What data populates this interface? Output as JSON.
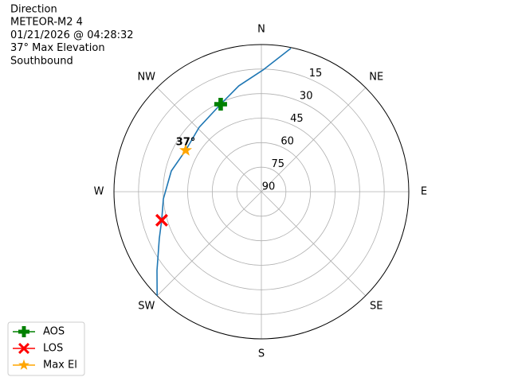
{
  "chart_data": {
    "type": "polar",
    "title_lines": [
      "Direction",
      "METEOR-M2 4",
      "01/21/2026 @ 04:28:32",
      "37° Max Elevation",
      "Southbound"
    ],
    "rlim": [
      90,
      0
    ],
    "rticks": [
      15,
      30,
      45,
      60,
      75,
      90
    ],
    "theta_ticks": [
      {
        "value": 0,
        "label": "N"
      },
      {
        "value": 45,
        "label": "NE"
      },
      {
        "value": 90,
        "label": "E"
      },
      {
        "value": 135,
        "label": "SE"
      },
      {
        "value": 180,
        "label": "S"
      },
      {
        "value": 225,
        "label": "SW"
      },
      {
        "value": 270,
        "label": "W"
      },
      {
        "value": 315,
        "label": "NW"
      }
    ],
    "grid": true,
    "legend": "lower left",
    "track": {
      "color": "#1f77b4",
      "azimuth": [
        11.6,
        0.7,
        348,
        335.1,
        316,
        298.7,
        283,
        265.8,
        254,
        245.3,
        232.9,
        225
      ],
      "elevation": [
        0.5,
        15.6,
        23.8,
        31.0,
        35.3,
        37.3,
        33.6,
        30,
        26.7,
        21.4,
        10.1,
        0
      ]
    },
    "series": [
      {
        "name": "AOS",
        "color": "#008000",
        "marker": "plus",
        "azimuth": [
          335.1
        ],
        "elevation": [
          31.0
        ]
      },
      {
        "name": "LOS",
        "color": "#ff0000",
        "marker": "x",
        "azimuth": [
          254
        ],
        "elevation": [
          26.7
        ]
      },
      {
        "name": "Max El",
        "color": "#ffa500",
        "marker": "star",
        "azimuth": [
          298.7
        ],
        "elevation": [
          37.3
        ],
        "value_labels": [
          "37°"
        ]
      }
    ]
  }
}
